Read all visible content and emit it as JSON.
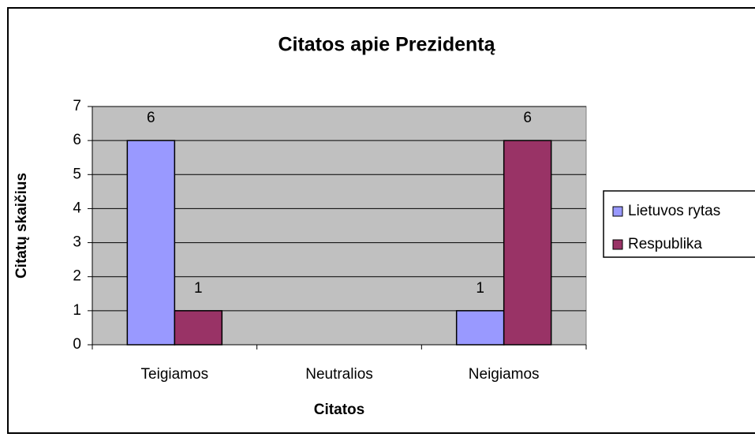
{
  "chart_data": {
    "type": "bar",
    "title": "Citatos apie Prezidentą",
    "x_label": "Citatos",
    "y_label": "Citatų skaičius",
    "categories": [
      "Teigiamos",
      "Neutralios",
      "Neigiamos"
    ],
    "series": [
      {
        "name": "Lietuvos rytas",
        "color": "#9999ff",
        "values": [
          6,
          null,
          1
        ]
      },
      {
        "name": "Respublika",
        "color": "#993366",
        "values": [
          1,
          null,
          6
        ]
      }
    ],
    "ylim": [
      0,
      7
    ],
    "yticks": [
      0,
      1,
      2,
      3,
      4,
      5,
      6,
      7
    ],
    "grid": true,
    "legend": "right",
    "data_labels": true
  }
}
